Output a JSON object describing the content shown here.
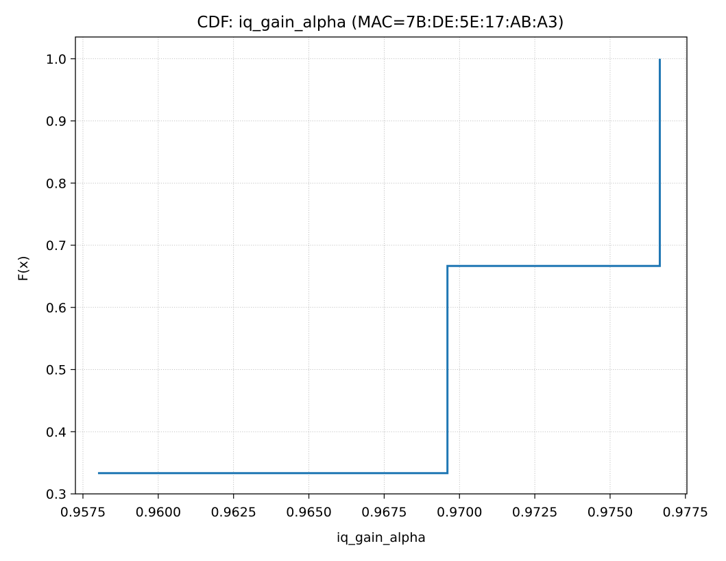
{
  "chart_data": {
    "type": "line",
    "step": "post",
    "title": "CDF: iq_gain_alpha (MAC=7B:DE:5E:17:AB:A3)",
    "xlabel": "iq_gain_alpha",
    "ylabel": "F(x)",
    "xlim": [
      0.95725,
      0.97755
    ],
    "ylim": [
      0.3,
      1.035
    ],
    "xticks": [
      0.9575,
      0.96,
      0.9625,
      0.965,
      0.9675,
      0.97,
      0.9725,
      0.975,
      0.9775
    ],
    "xtick_labels": [
      "0.9575",
      "0.9600",
      "0.9625",
      "0.9650",
      "0.9675",
      "0.9700",
      "0.9725",
      "0.9750",
      "0.9775"
    ],
    "yticks": [
      0.3,
      0.4,
      0.5,
      0.6,
      0.7,
      0.8,
      0.9,
      1.0
    ],
    "ytick_labels": [
      "0.3",
      "0.4",
      "0.5",
      "0.6",
      "0.7",
      "0.8",
      "0.9",
      "1.0"
    ],
    "grid": true,
    "grid_style": "dotted",
    "series": [
      {
        "x": [
          0.958,
          0.9696,
          0.97665
        ],
        "y": [
          0.3333,
          0.6667,
          1.0
        ],
        "color": "#1f77b4"
      }
    ]
  }
}
